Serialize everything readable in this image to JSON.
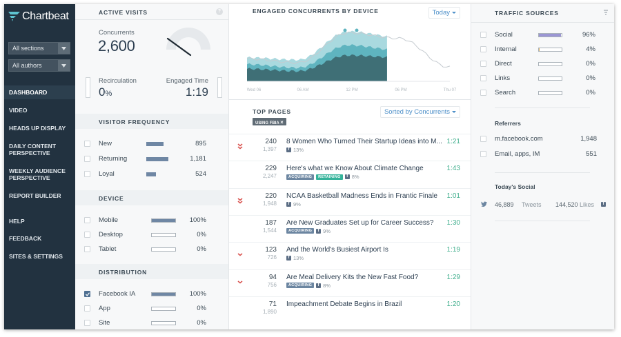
{
  "brand": {
    "name": "Chartbeat"
  },
  "sidebar": {
    "filters": [
      {
        "label": "All sections"
      },
      {
        "label": "All authors"
      }
    ],
    "nav": [
      {
        "label": "DASHBOARD",
        "active": true
      },
      {
        "label": "VIDEO"
      },
      {
        "label": "HEADS UP DISPLAY"
      },
      {
        "label": "DAILY CONTENT PERSPECTIVE"
      },
      {
        "label": "WEEKLY AUDIENCE PERSPECTIVE"
      },
      {
        "label": "REPORT BUILDER"
      },
      {
        "label": "HELP"
      },
      {
        "label": "FEEDBACK"
      },
      {
        "label": "SITES & SETTINGS"
      }
    ]
  },
  "active_visits": {
    "title": "ACTIVE VISITS",
    "help": "?",
    "concurrents_label": "Concurrents",
    "concurrents_value": "2,600",
    "recirculation_label": "Recirculation",
    "recirculation_value": "0",
    "recirculation_unit": "%",
    "engaged_time_label": "Engaged Time",
    "engaged_time_value": "1:19"
  },
  "visitor_frequency": {
    "title": "VISITOR FREQUENCY",
    "rows": [
      {
        "name": "New",
        "value": "895",
        "fraction": 0.41,
        "checked": false
      },
      {
        "name": "Returning",
        "value": "1,181",
        "fraction": 0.54,
        "checked": false
      },
      {
        "name": "Loyal",
        "value": "524",
        "fraction": 0.24,
        "checked": false
      }
    ]
  },
  "device": {
    "title": "DEVICE",
    "rows": [
      {
        "name": "Mobile",
        "value": "100%",
        "fraction": 1.0,
        "checked": false
      },
      {
        "name": "Desktop",
        "value": "0%",
        "fraction": 0,
        "checked": false
      },
      {
        "name": "Tablet",
        "value": "0%",
        "fraction": 0,
        "checked": false
      }
    ]
  },
  "distribution": {
    "title": "DISTRIBUTION",
    "rows": [
      {
        "name": "Facebook IA",
        "value": "100%",
        "fraction": 1.0,
        "checked": true
      },
      {
        "name": "App",
        "value": "0%",
        "fraction": 0,
        "checked": false
      },
      {
        "name": "Site",
        "value": "0%",
        "fraction": 0,
        "checked": false
      }
    ]
  },
  "engaged_chart": {
    "title": "ENGAGED CONCURRENTS BY DEVICE",
    "range_label": "Today"
  },
  "chart_data": {
    "type": "area",
    "title": "ENGAGED CONCURRENTS BY DEVICE",
    "x": [
      "Wed 06",
      "06 AM",
      "12 PM",
      "06 PM",
      "Thu 07"
    ],
    "series": [
      {
        "name": "Mobile",
        "values": [
          0.42,
          0.38,
          0.88,
          0.78,
          null
        ]
      },
      {
        "name": "Tablet",
        "values": [
          0.3,
          0.24,
          0.64,
          0.55,
          null
        ]
      },
      {
        "name": "Desktop",
        "values": [
          0.22,
          0.18,
          0.46,
          0.42,
          null
        ]
      },
      {
        "name": "Yesterday",
        "values": [
          0.4,
          0.33,
          0.86,
          0.76,
          0.25
        ]
      }
    ],
    "xlabel": "",
    "ylabel": "",
    "grid": false
  },
  "top_pages": {
    "title": "TOP PAGES",
    "sort_label": "Sorted by Concurrents",
    "filter_tag": "USING FBIA",
    "filter_close": "×",
    "rows": [
      {
        "trend": "double-down",
        "concurrents": "240",
        "previous": "1,397",
        "title": "8 Women Who Turned Their Startup Ideas into M...",
        "badges": [],
        "fb": "13%",
        "time": "1:21"
      },
      {
        "trend": "",
        "concurrents": "229",
        "previous": "2,247",
        "title": "Here's what we Know About Climate Change",
        "badges": [
          "ACQUIRING",
          "RETAINING"
        ],
        "fb": "8%",
        "time": "1:43"
      },
      {
        "trend": "double-down",
        "concurrents": "220",
        "previous": "1,948",
        "title": "NCAA Basketball Madness Ends in Frantic Finale",
        "badges": [],
        "fb": "9%",
        "time": "1:01"
      },
      {
        "trend": "",
        "concurrents": "187",
        "previous": "1,544",
        "title": "Are New Graduates Set up for Career Success?",
        "badges": [
          "ACQUIRING"
        ],
        "fb": "9%",
        "time": "1:30"
      },
      {
        "trend": "down",
        "concurrents": "123",
        "previous": "726",
        "title": "And the World's Busiest Airport Is",
        "badges": [],
        "fb": "13%",
        "time": "1:19"
      },
      {
        "trend": "down",
        "concurrents": "94",
        "previous": "756",
        "title": "Are Meal Delivery Kits the New Fast Food?",
        "badges": [
          "ACQUIRING"
        ],
        "fb": "8%",
        "time": "1:29"
      },
      {
        "trend": "",
        "concurrents": "71",
        "previous": "1,890",
        "title": "Impeachment Debate Begins in Brazil",
        "badges": [],
        "fb": "",
        "time": "1:20"
      }
    ]
  },
  "traffic_sources": {
    "title": "TRAFFIC SOURCES",
    "rows": [
      {
        "name": "Social",
        "value": "96%",
        "fraction": 0.96
      },
      {
        "name": "Internal",
        "value": "4%",
        "fraction": 0.04
      },
      {
        "name": "Direct",
        "value": "0%",
        "fraction": 0
      },
      {
        "name": "Links",
        "value": "0%",
        "fraction": 0
      },
      {
        "name": "Search",
        "value": "0%",
        "fraction": 0
      }
    ],
    "referrers_title": "Referrers",
    "referrers": [
      {
        "name": "m.facebook.com",
        "value": "1,948"
      },
      {
        "name": "Email, apps, IM",
        "value": "551"
      }
    ],
    "social_title": "Today's Social",
    "tweets_value": "46,889",
    "tweets_label": "Tweets",
    "likes_value": "144,520",
    "likes_label": "Likes"
  },
  "colors": {
    "sidebar_bg": "#223240",
    "accent_blue": "#4b8ec8",
    "time_green": "#3fae8c",
    "bar_fill": "#6f87a4",
    "social_bar": "#9b96d4",
    "internal_bar": "#e0b15c"
  }
}
